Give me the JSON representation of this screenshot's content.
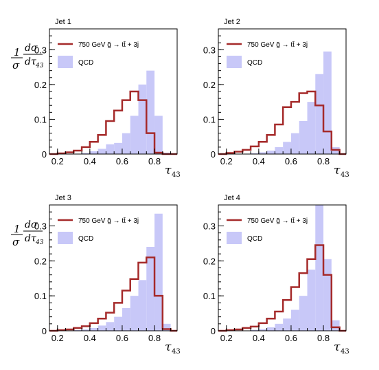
{
  "figure": {
    "ylabel": {
      "num_1": "1",
      "num_2": "dσ",
      "den_1": "σ",
      "den_2": "dτ",
      "den_sub": "43"
    },
    "xlabel": {
      "main": "τ",
      "sub": "43"
    }
  },
  "chart_data": [
    {
      "type": "bar",
      "title": "Jet 1",
      "xlabel": "τ43",
      "ylabel": "1/σ dσ/dτ43",
      "xlim": [
        0.15,
        0.94
      ],
      "ylim": [
        0,
        0.36
      ],
      "xticks": [
        0.2,
        0.4,
        0.6,
        0.8
      ],
      "xtick_labels": [
        "0.2",
        "0.4",
        "0.6",
        "0.8"
      ],
      "yticks": [
        0,
        0.1,
        0.2,
        0.3
      ],
      "ytick_labels": [
        "0",
        "0.1",
        "0.2",
        "0.3"
      ],
      "legend_position": "top-left",
      "bin_edges": [
        0.15,
        0.2,
        0.25,
        0.3,
        0.35,
        0.4,
        0.45,
        0.5,
        0.55,
        0.6,
        0.65,
        0.7,
        0.75,
        0.8,
        0.85,
        0.9,
        0.94
      ],
      "series": [
        {
          "name": "QCD",
          "legend": "QCD",
          "style": "filled",
          "color": "#c8c8f8",
          "values": [
            0,
            0,
            0,
            0,
            0.003,
            0.008,
            0.015,
            0.028,
            0.032,
            0.06,
            0.11,
            0.2,
            0.24,
            0.11,
            0.004,
            0
          ]
        },
        {
          "name": "signal",
          "legend": "750 GeV g̃ → tt̄ + 3j",
          "style": "step",
          "color": "#a52a2a",
          "values": [
            0,
            0.002,
            0.005,
            0.01,
            0.02,
            0.035,
            0.055,
            0.095,
            0.125,
            0.155,
            0.18,
            0.155,
            0.06,
            0.004,
            0,
            0
          ]
        }
      ]
    },
    {
      "type": "bar",
      "title": "Jet 2",
      "xlabel": "τ43",
      "ylabel": "1/σ dσ/dτ43",
      "xlim": [
        0.15,
        0.94
      ],
      "ylim": [
        0,
        0.36
      ],
      "xticks": [
        0.2,
        0.4,
        0.6,
        0.8
      ],
      "xtick_labels": [
        "0.2",
        "0.4",
        "0.6",
        "0.8"
      ],
      "yticks": [
        0,
        0.1,
        0.2,
        0.3
      ],
      "ytick_labels": [
        "0",
        "0.1",
        "0.2",
        "0.3"
      ],
      "legend_position": "top-left",
      "bin_edges": [
        0.15,
        0.2,
        0.25,
        0.3,
        0.35,
        0.4,
        0.45,
        0.5,
        0.55,
        0.6,
        0.65,
        0.7,
        0.75,
        0.8,
        0.85,
        0.9,
        0.94
      ],
      "series": [
        {
          "name": "QCD",
          "legend": "QCD",
          "style": "filled",
          "color": "#c8c8f8",
          "values": [
            0,
            0,
            0,
            0,
            0.002,
            0.005,
            0.01,
            0.02,
            0.035,
            0.06,
            0.095,
            0.15,
            0.23,
            0.295,
            0.02,
            0
          ]
        },
        {
          "name": "signal",
          "legend": "750 GeV g̃ → tt̄ + 3j",
          "style": "step",
          "color": "#a52a2a",
          "values": [
            0,
            0.003,
            0.007,
            0.012,
            0.022,
            0.035,
            0.055,
            0.085,
            0.135,
            0.15,
            0.175,
            0.18,
            0.14,
            0.065,
            0.012,
            0
          ]
        }
      ]
    },
    {
      "type": "bar",
      "title": "Jet 3",
      "xlabel": "τ43",
      "ylabel": "1/σ dσ/dτ43",
      "xlim": [
        0.15,
        0.94
      ],
      "ylim": [
        0,
        0.36
      ],
      "xticks": [
        0.2,
        0.4,
        0.6,
        0.8
      ],
      "xtick_labels": [
        "0.2",
        "0.4",
        "0.6",
        "0.8"
      ],
      "yticks": [
        0,
        0.1,
        0.2,
        0.3
      ],
      "ytick_labels": [
        "0",
        "0.1",
        "0.2",
        "0.3"
      ],
      "legend_position": "top-left",
      "bin_edges": [
        0.15,
        0.2,
        0.25,
        0.3,
        0.35,
        0.4,
        0.45,
        0.5,
        0.55,
        0.6,
        0.65,
        0.7,
        0.75,
        0.8,
        0.85,
        0.9,
        0.94
      ],
      "series": [
        {
          "name": "QCD",
          "legend": "QCD",
          "style": "filled",
          "color": "#c8c8f8",
          "values": [
            0,
            0,
            0,
            0.002,
            0.004,
            0.008,
            0.015,
            0.025,
            0.04,
            0.065,
            0.1,
            0.145,
            0.24,
            0.335,
            0.02,
            0
          ]
        },
        {
          "name": "signal",
          "legend": "750 GeV g̃ → tt̄ + 3j",
          "style": "step",
          "color": "#a52a2a",
          "values": [
            0,
            0.002,
            0.004,
            0.008,
            0.013,
            0.022,
            0.035,
            0.052,
            0.08,
            0.115,
            0.148,
            0.195,
            0.21,
            0.1,
            0.005,
            0
          ]
        }
      ]
    },
    {
      "type": "bar",
      "title": "Jet 4",
      "xlabel": "τ43",
      "ylabel": "1/σ dσ/dτ43",
      "xlim": [
        0.15,
        0.94
      ],
      "ylim": [
        0,
        0.36
      ],
      "xticks": [
        0.2,
        0.4,
        0.6,
        0.8
      ],
      "xtick_labels": [
        "0.2",
        "0.4",
        "0.6",
        "0.8"
      ],
      "yticks": [
        0,
        0.1,
        0.2,
        0.3
      ],
      "ytick_labels": [
        "0",
        "0.1",
        "0.2",
        "0.3"
      ],
      "legend_position": "top-left",
      "bin_edges": [
        0.15,
        0.2,
        0.25,
        0.3,
        0.35,
        0.4,
        0.45,
        0.5,
        0.55,
        0.6,
        0.65,
        0.7,
        0.75,
        0.8,
        0.85,
        0.9,
        0.94
      ],
      "series": [
        {
          "name": "QCD",
          "legend": "QCD",
          "style": "filled",
          "color": "#c8c8f8",
          "values": [
            0,
            0,
            0,
            0,
            0.003,
            0.005,
            0.01,
            0.02,
            0.035,
            0.06,
            0.1,
            0.175,
            0.36,
            0.205,
            0.03,
            0
          ]
        },
        {
          "name": "signal",
          "legend": "750 GeV g̃ → tt̄ + 3j",
          "style": "step",
          "color": "#a52a2a",
          "values": [
            0,
            0.002,
            0.004,
            0.008,
            0.012,
            0.022,
            0.035,
            0.055,
            0.088,
            0.125,
            0.165,
            0.205,
            0.245,
            0.16,
            0.01,
            0
          ]
        }
      ]
    }
  ]
}
